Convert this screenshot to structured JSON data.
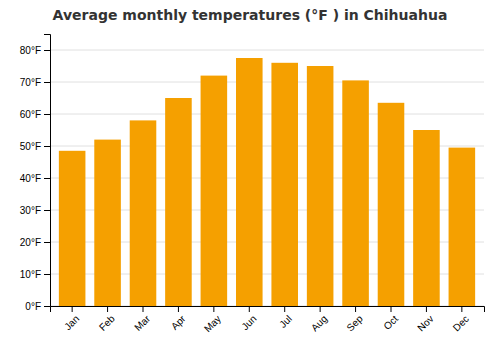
{
  "chart_data": {
    "type": "bar",
    "title": "Average monthly temperatures (°F ) in Chihuahua",
    "categories": [
      "Jan",
      "Feb",
      "Mar",
      "Apr",
      "May",
      "Jun",
      "Jul",
      "Aug",
      "Sep",
      "Oct",
      "Nov",
      "Dec"
    ],
    "values": [
      48.5,
      52.0,
      58.0,
      65.0,
      72.0,
      77.5,
      76.0,
      75.0,
      70.5,
      63.5,
      55.0,
      49.5
    ],
    "color": "#F5A000",
    "ylim": [
      0,
      85
    ],
    "yticks": [
      {
        "value": 0,
        "label": "0°F"
      },
      {
        "value": 10,
        "label": "10°F"
      },
      {
        "value": 20,
        "label": "20°F"
      },
      {
        "value": 30,
        "label": "30°F"
      },
      {
        "value": 40,
        "label": "40°F"
      },
      {
        "value": 50,
        "label": "50°F"
      },
      {
        "value": 60,
        "label": "60°F"
      },
      {
        "value": 70,
        "label": "70°F"
      },
      {
        "value": 80,
        "label": "80°F"
      }
    ],
    "grid": true
  }
}
